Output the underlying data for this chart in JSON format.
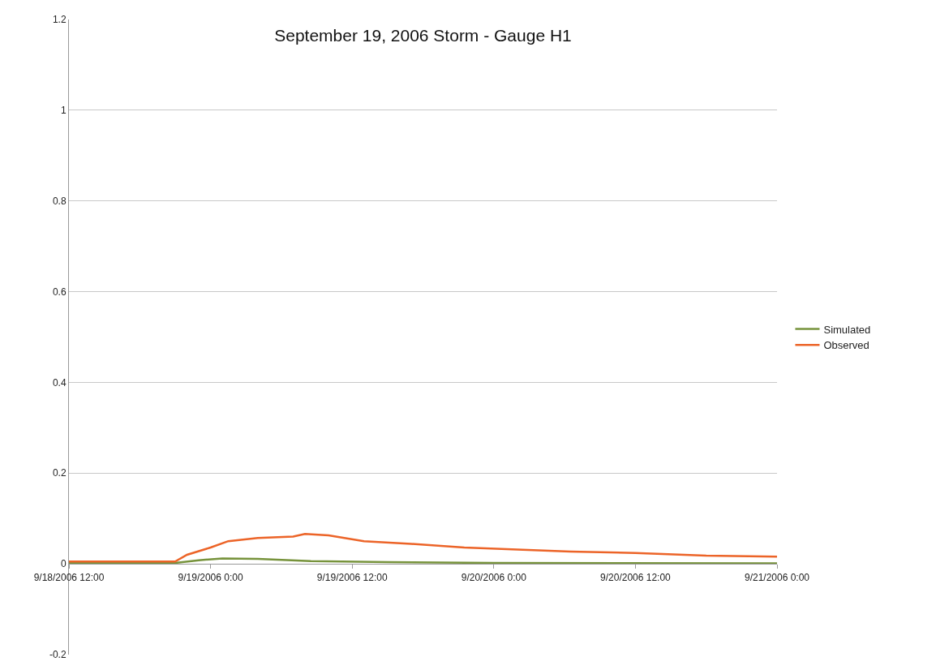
{
  "chart_data": {
    "type": "line",
    "title": "September 19, 2006 Storm - Gauge H1",
    "series": [
      {
        "name": "Simulated",
        "color": "#77933c",
        "x": [
          "2006-09-18T12:00",
          "2006-09-18T21:00",
          "2006-09-18T23:00",
          "2006-09-19T01:00",
          "2006-09-19T04:00",
          "2006-09-19T08:30",
          "2006-09-19T15:00",
          "2006-09-20T00:00",
          "2006-09-21T00:00"
        ],
        "values": [
          0.002,
          0.002,
          0.008,
          0.012,
          0.011,
          0.006,
          0.004,
          0.002,
          0.001
        ]
      },
      {
        "name": "Observed",
        "color": "#ec6428",
        "x": [
          "2006-09-18T12:00",
          "2006-09-18T21:00",
          "2006-09-18T22:00",
          "2006-09-19T00:00",
          "2006-09-19T01:30",
          "2006-09-19T04:00",
          "2006-09-19T07:00",
          "2006-09-19T08:00",
          "2006-09-19T10:00",
          "2006-09-19T13:00",
          "2006-09-19T17:00",
          "2006-09-19T21:30",
          "2006-09-20T06:30",
          "2006-09-20T12:00",
          "2006-09-20T18:00",
          "2006-09-21T00:00"
        ],
        "values": [
          0.005,
          0.005,
          0.02,
          0.036,
          0.05,
          0.057,
          0.06,
          0.066,
          0.063,
          0.05,
          0.044,
          0.036,
          0.027,
          0.024,
          0.018,
          0.016
        ]
      }
    ],
    "xlim": [
      "2006-09-18T12:00",
      "2006-09-21T00:00"
    ],
    "xticks": [
      {
        "value": "2006-09-18T12:00",
        "label": "9/18/2006 12:00"
      },
      {
        "value": "2006-09-19T00:00",
        "label": "9/19/2006 0:00"
      },
      {
        "value": "2006-09-19T12:00",
        "label": "9/19/2006 12:00"
      },
      {
        "value": "2006-09-20T00:00",
        "label": "9/20/2006 0:00"
      },
      {
        "value": "2006-09-20T12:00",
        "label": "9/20/2006 12:00"
      },
      {
        "value": "2006-09-21T00:00",
        "label": "9/21/2006 0:00"
      }
    ],
    "ylim": [
      -0.2,
      1.2
    ],
    "yticks": [
      -0.2,
      0,
      0.2,
      0.4,
      0.6,
      0.8,
      1,
      1.2
    ],
    "grid": "y",
    "legend": "right",
    "marker": "none",
    "line_style": "solid"
  }
}
